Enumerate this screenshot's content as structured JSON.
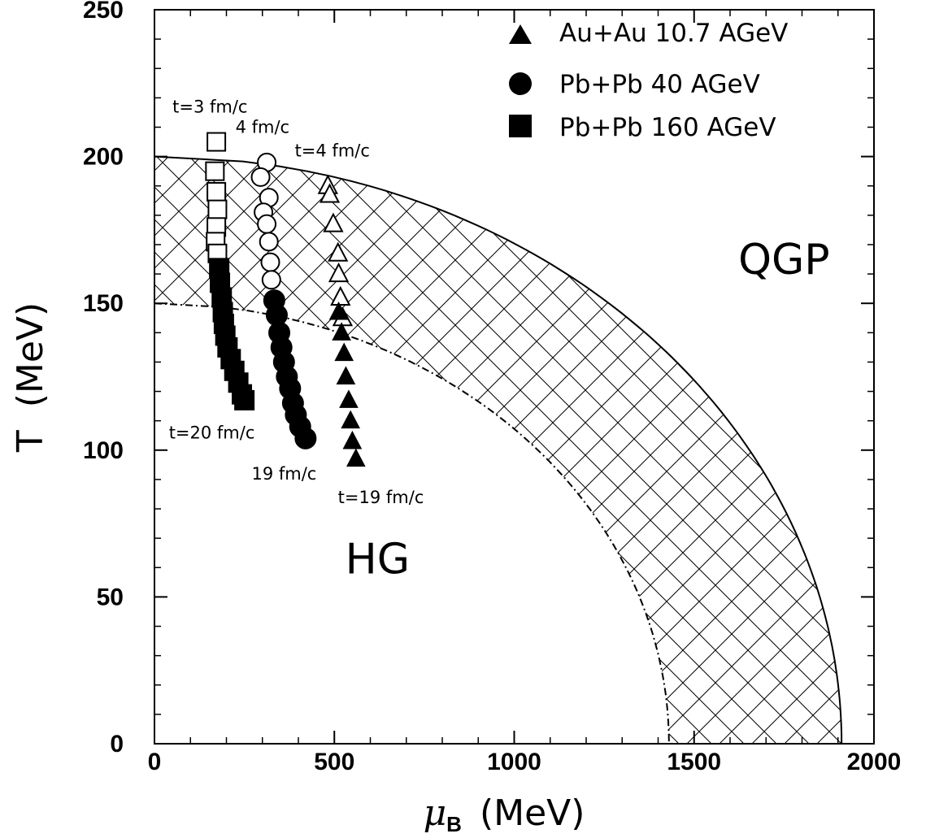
{
  "chart_data": {
    "type": "scatter",
    "xlabel_symbol": "μ",
    "xlabel_sub": "B",
    "xlabel_unit": "(MeV)",
    "ylabel": "T  (MeV)",
    "xlim": [
      0,
      2000
    ],
    "ylim": [
      0,
      250
    ],
    "x_ticks": [
      "0",
      "500",
      "1000",
      "1500",
      "2000"
    ],
    "x_tick_values": [
      0,
      500,
      1000,
      1500,
      2000
    ],
    "y_ticks": [
      "0",
      "50",
      "100",
      "150",
      "200",
      "250"
    ],
    "y_tick_values": [
      0,
      50,
      100,
      150,
      200,
      250
    ],
    "grid": false,
    "legend_position": "top-right",
    "regions": {
      "qgp_label": "QGP",
      "hg_label": "HG",
      "upper_boundary": {
        "T0": 200,
        "muB_at_T0": 1910
      },
      "lower_boundary": {
        "T0": 150,
        "muB_at_T0": 1430
      },
      "hatch": "crosshatch"
    },
    "series": [
      {
        "name": "Au+Au 10.7 AGeV",
        "marker": "triangle",
        "open_points": [
          [
            482,
            190
          ],
          [
            487,
            187
          ],
          [
            497,
            177
          ],
          [
            510,
            167
          ],
          [
            512,
            160
          ],
          [
            517,
            152
          ],
          [
            523,
            145
          ]
        ],
        "filled_points": [
          [
            512,
            147
          ],
          [
            520,
            140
          ],
          [
            527,
            133
          ],
          [
            532,
            125
          ],
          [
            540,
            117
          ],
          [
            545,
            110
          ],
          [
            550,
            103
          ],
          [
            560,
            97
          ]
        ]
      },
      {
        "name": "Pb+Pb 40 AGeV",
        "marker": "circle",
        "open_points": [
          [
            312,
            198
          ],
          [
            295,
            193
          ],
          [
            318,
            186
          ],
          [
            303,
            181
          ],
          [
            312,
            177
          ],
          [
            318,
            171
          ],
          [
            322,
            164
          ],
          [
            325,
            158
          ]
        ],
        "filled_points": [
          [
            333,
            151
          ],
          [
            340,
            146
          ],
          [
            347,
            140
          ],
          [
            353,
            135
          ],
          [
            360,
            130
          ],
          [
            368,
            125
          ],
          [
            377,
            121
          ],
          [
            385,
            116
          ],
          [
            393,
            112
          ],
          [
            405,
            108
          ],
          [
            420,
            104
          ]
        ]
      },
      {
        "name": "Pb+Pb 160 AGeV",
        "marker": "square",
        "open_points": [
          [
            172,
            205
          ],
          [
            168,
            195
          ],
          [
            172,
            188
          ],
          [
            175,
            182
          ],
          [
            172,
            176
          ],
          [
            170,
            171
          ],
          [
            175,
            167
          ]
        ],
        "filled_points": [
          [
            180,
            162
          ],
          [
            182,
            157
          ],
          [
            187,
            152
          ],
          [
            190,
            147
          ],
          [
            193,
            143
          ],
          [
            197,
            139
          ],
          [
            203,
            135
          ],
          [
            212,
            131
          ],
          [
            222,
            127
          ],
          [
            233,
            123
          ],
          [
            243,
            119
          ],
          [
            250,
            117
          ]
        ]
      }
    ],
    "annotations": [
      {
        "text": "t=3 fm/c",
        "x": 50,
        "y": 215
      },
      {
        "text": "4 fm/c",
        "x": 225,
        "y": 208
      },
      {
        "text": "t=4 fm/c",
        "x": 390,
        "y": 200
      },
      {
        "text": "t=20 fm/c",
        "x": 40,
        "y": 104
      },
      {
        "text": "19 fm/c",
        "x": 270,
        "y": 90
      },
      {
        "text": "t=19 fm/c",
        "x": 510,
        "y": 82
      }
    ]
  }
}
